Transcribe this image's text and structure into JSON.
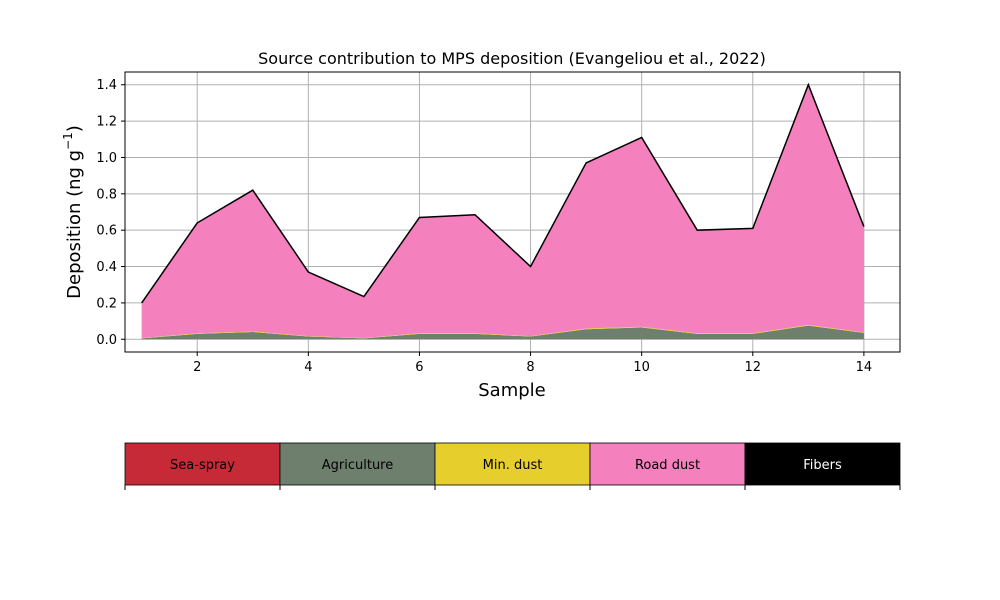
{
  "chart_data": {
    "type": "area",
    "title": "Source contribution to MPS deposition (Evangeliou et al., 2022)",
    "xlabel": "Sample",
    "ylabel_text": "Deposition (ng g",
    "ylabel_sup": "−1",
    "ylabel_close": ")",
    "xlim": [
      0.7,
      14.65
    ],
    "ylim": [
      -0.07,
      1.47
    ],
    "xticks": [
      2,
      4,
      6,
      8,
      10,
      12,
      14
    ],
    "xtick_labels": [
      "2",
      "4",
      "6",
      "8",
      "10",
      "12",
      "14"
    ],
    "yticks": [
      0.0,
      0.2,
      0.4,
      0.6,
      0.8,
      1.0,
      1.2,
      1.4
    ],
    "ytick_labels": [
      "0.0",
      "0.2",
      "0.4",
      "0.6",
      "0.8",
      "1.0",
      "1.2",
      "1.4"
    ],
    "grid": true,
    "stacked": true,
    "x": [
      1,
      2,
      3,
      4,
      5,
      6,
      7,
      8,
      9,
      10,
      11,
      12,
      13,
      14
    ],
    "series": [
      {
        "name": "Sea-spray",
        "color": "#c62a37",
        "values": [
          0.0,
          0.0,
          0.0,
          0.0,
          0.0,
          0.0,
          0.0,
          0.0,
          0.0,
          0.0,
          0.0,
          0.0,
          0.0,
          0.0
        ]
      },
      {
        "name": "Agriculture",
        "color": "#6e7f6e",
        "values": [
          0.005,
          0.03,
          0.04,
          0.015,
          0.005,
          0.03,
          0.03,
          0.015,
          0.055,
          0.065,
          0.03,
          0.03,
          0.075,
          0.035
        ]
      },
      {
        "name": "Min. dust",
        "color": "#e6cf2c",
        "values": [
          0.002,
          0.003,
          0.003,
          0.002,
          0.002,
          0.003,
          0.003,
          0.002,
          0.004,
          0.004,
          0.003,
          0.003,
          0.004,
          0.003
        ]
      },
      {
        "name": "Road dust",
        "color": "#f481bd",
        "values": [
          0.193,
          0.607,
          0.777,
          0.353,
          0.228,
          0.637,
          0.652,
          0.383,
          0.911,
          1.041,
          0.567,
          0.577,
          1.321,
          0.582
        ]
      },
      {
        "name": "Fibers",
        "color": "#000000",
        "values": [
          0.0,
          0.0,
          0.0,
          0.0,
          0.0,
          0.0,
          0.0,
          0.0,
          0.0,
          0.0,
          0.0,
          0.0,
          0.0,
          0.0
        ]
      }
    ],
    "legend": {
      "placement": "bottom",
      "entries": [
        {
          "label": "Sea-spray",
          "color": "#c62a37",
          "text_color": "#000000"
        },
        {
          "label": "Agriculture",
          "color": "#6e7f6e",
          "text_color": "#000000"
        },
        {
          "label": "Min. dust",
          "color": "#e6cf2c",
          "text_color": "#000000"
        },
        {
          "label": "Road dust",
          "color": "#f481bd",
          "text_color": "#000000"
        },
        {
          "label": "Fibers",
          "color": "#000000",
          "text_color": "#ffffff"
        }
      ]
    }
  }
}
